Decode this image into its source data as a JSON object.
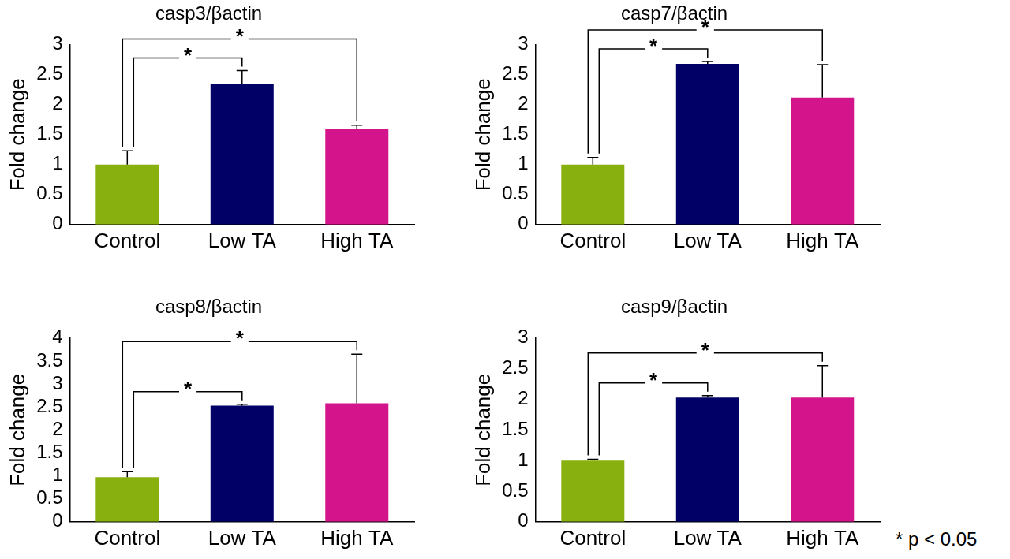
{
  "chart_data": [
    {
      "type": "bar",
      "title": "casp3/βactin",
      "y_label": "Fold change",
      "categories": [
        "Control",
        "Low TA",
        "High TA"
      ],
      "values": [
        1.0,
        2.35,
        1.6
      ],
      "errors": [
        0.23,
        0.22,
        0.06
      ],
      "colors": [
        "#88b00f",
        "#000066",
        "#d4148a"
      ],
      "ylim": [
        0,
        3
      ],
      "yticks": [
        0,
        0.5,
        1,
        1.5,
        2,
        2.5,
        3
      ],
      "grid": false,
      "significance": [
        {
          "from": "Control",
          "to": "Low TA",
          "label": "*"
        },
        {
          "from": "Control",
          "to": "High TA",
          "label": "*"
        }
      ]
    },
    {
      "type": "bar",
      "title": "casp7/βactin",
      "y_label": "Fold change",
      "categories": [
        "Control",
        "Low TA",
        "High TA"
      ],
      "values": [
        1.0,
        2.68,
        2.12
      ],
      "errors": [
        0.12,
        0.04,
        0.55
      ],
      "colors": [
        "#88b00f",
        "#000066",
        "#d4148a"
      ],
      "ylim": [
        0,
        3
      ],
      "yticks": [
        0,
        0.5,
        1,
        1.5,
        2,
        2.5,
        3
      ],
      "grid": false,
      "significance": [
        {
          "from": "Control",
          "to": "Low TA",
          "label": "*"
        },
        {
          "from": "Control",
          "to": "High TA",
          "label": "*"
        }
      ]
    },
    {
      "type": "bar",
      "title": "casp8/βactin",
      "y_label": "Fold change",
      "categories": [
        "Control",
        "Low TA",
        "High TA"
      ],
      "values": [
        0.97,
        2.53,
        2.58
      ],
      "errors": [
        0.12,
        0.03,
        1.07
      ],
      "colors": [
        "#88b00f",
        "#000066",
        "#d4148a"
      ],
      "ylim": [
        0,
        4
      ],
      "yticks": [
        0,
        0.5,
        1,
        1.5,
        2,
        2.5,
        3,
        3.5,
        4
      ],
      "grid": false,
      "significance": [
        {
          "from": "Control",
          "to": "Low TA",
          "label": "*"
        },
        {
          "from": "Control",
          "to": "High TA",
          "label": "*"
        }
      ]
    },
    {
      "type": "bar",
      "title": "casp9/βactin",
      "y_label": "Fold change",
      "categories": [
        "Control",
        "Low TA",
        "High TA"
      ],
      "values": [
        1.0,
        2.03,
        2.03
      ],
      "errors": [
        0.02,
        0.03,
        0.52
      ],
      "colors": [
        "#88b00f",
        "#000066",
        "#d4148a"
      ],
      "ylim": [
        0,
        3
      ],
      "yticks": [
        0,
        0.5,
        1,
        1.5,
        2,
        2.5,
        3
      ],
      "grid": false,
      "significance": [
        {
          "from": "Control",
          "to": "Low TA",
          "label": "*"
        },
        {
          "from": "Control",
          "to": "High TA",
          "label": "*"
        }
      ]
    }
  ],
  "footnote": "* p < 0.05"
}
